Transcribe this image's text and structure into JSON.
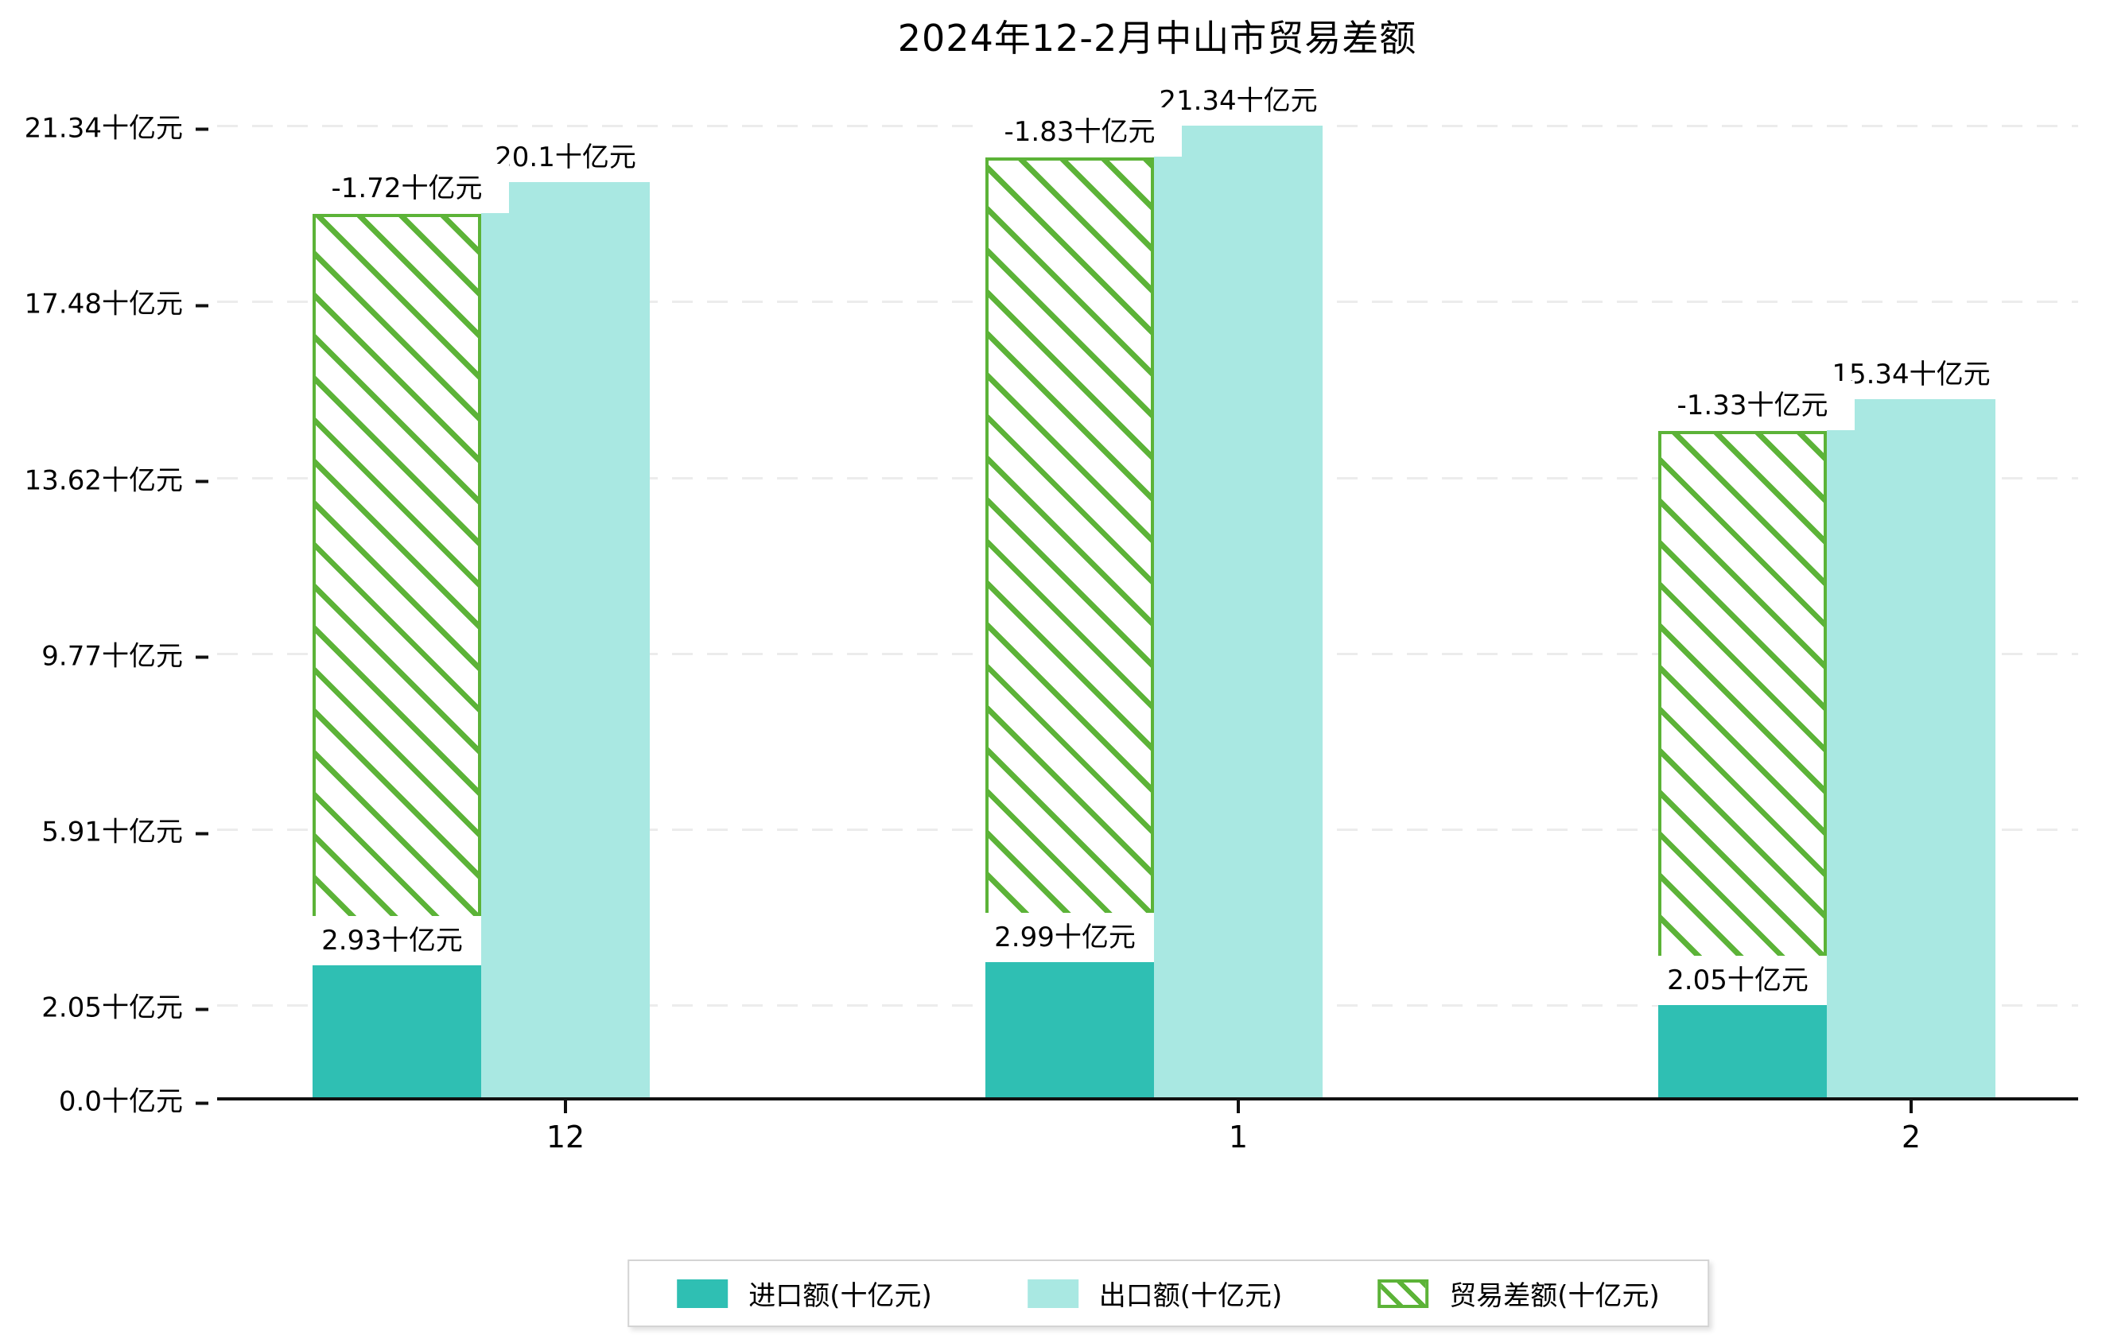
{
  "chart_data": {
    "type": "bar",
    "title": "2024年12-2月中山市贸易差额",
    "categories": [
      "12",
      "1",
      "2"
    ],
    "series": [
      {
        "name": "进口额(十亿元)",
        "key": "import",
        "color": "#2fbfb3",
        "values": [
          2.93,
          2.99,
          2.05
        ],
        "data_labels": [
          "2.93十亿元",
          "2.99十亿元",
          "2.05十亿元"
        ]
      },
      {
        "name": "出口额(十亿元)",
        "key": "export",
        "color": "#a9e8e2",
        "values": [
          20.1,
          21.34,
          15.34
        ],
        "data_labels": [
          "20.1十亿元",
          "21.34十亿元",
          "15.34十亿元"
        ]
      },
      {
        "name": "贸易差额(十亿元)",
        "key": "balance",
        "color": "#5cb338",
        "style": "hatched",
        "values": [
          -1.72,
          -1.83,
          -1.33
        ],
        "data_labels": [
          "-1.72十亿元",
          "-1.83十亿元",
          "-1.33十亿元"
        ]
      }
    ],
    "y_axis": {
      "tick_labels": [
        "21.34十亿元",
        "17.48十亿元",
        "13.62十亿元",
        "9.77十亿元",
        "5.91十亿元",
        "2.05十亿元",
        "0.0十亿元"
      ],
      "tick_values": [
        21.34,
        17.48,
        13.62,
        9.77,
        5.91,
        2.05,
        0.0
      ]
    },
    "x_axis": {
      "tick_labels": [
        "12",
        "1",
        "2"
      ]
    },
    "ylim": [
      0,
      22.3
    ],
    "grid": "horizontal-dashed",
    "legend_position": "bottom"
  }
}
